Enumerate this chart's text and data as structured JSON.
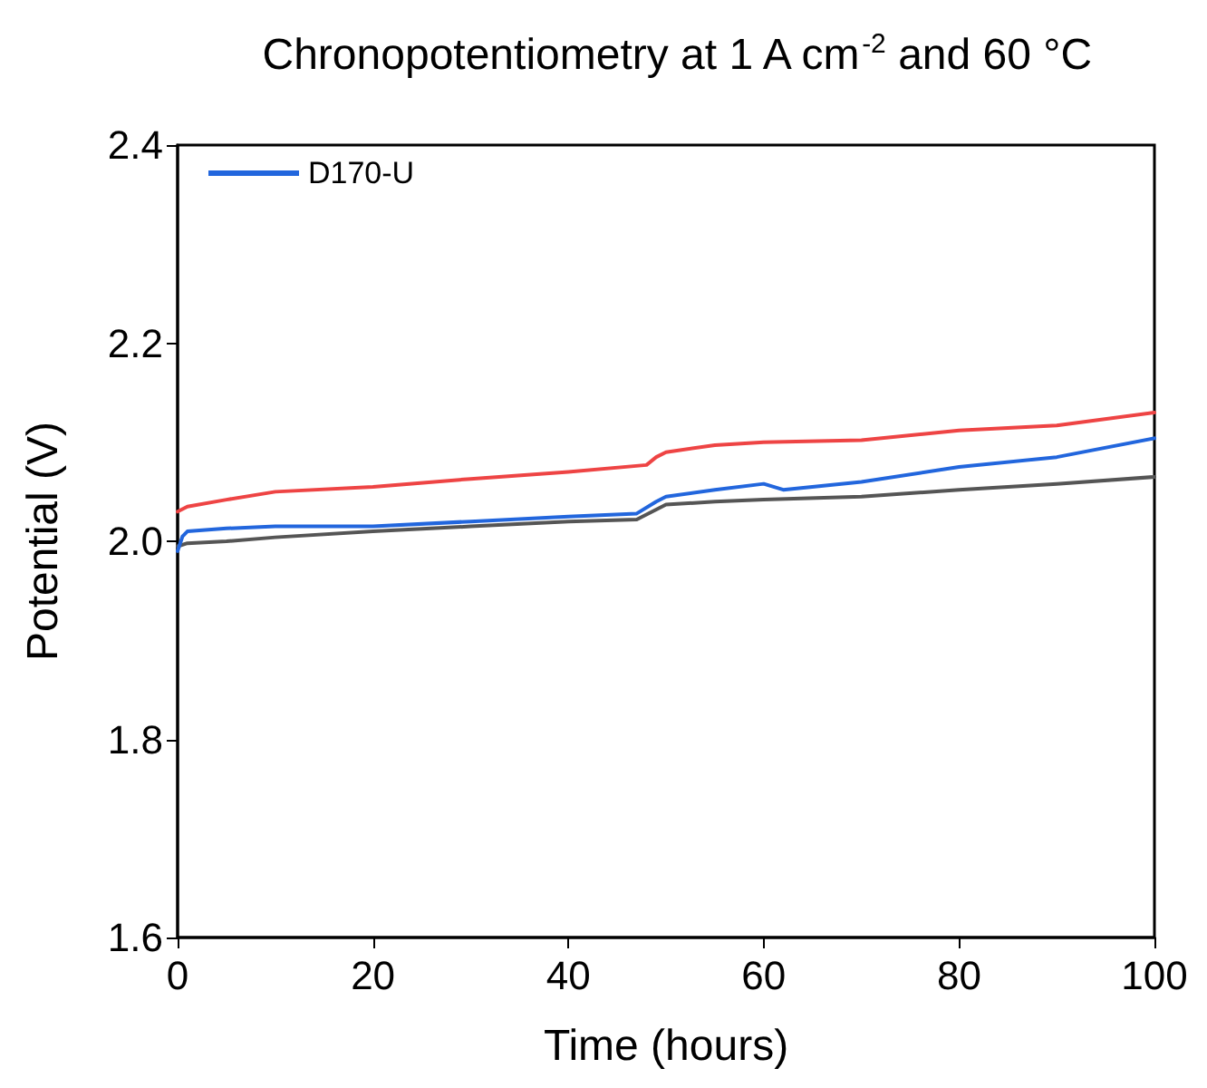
{
  "chart_data": {
    "type": "line",
    "title": "Chronopotentiometry at 1 A cm$^{-2}$ and 60 °C",
    "xlabel": "Time (hours)",
    "ylabel": "Potential (V)",
    "xlim": [
      0,
      100
    ],
    "xticks": [
      0,
      20,
      40,
      60,
      80,
      100
    ],
    "ylim": [
      1.6,
      2.4
    ],
    "yticks": [
      {
        "value": 1.6,
        "label": "1.6"
      },
      {
        "value": 1.8,
        "label": "1.8"
      },
      {
        "value": 2.0,
        "label": "2.0"
      },
      {
        "value": 2.2,
        "label": "2.2"
      },
      {
        "value": 2.4,
        "label": "2.4"
      }
    ],
    "grid": false,
    "legend": "top left",
    "marker": "none",
    "line_style": "solid",
    "series": [
      {
        "color": "#555555",
        "x": [
          0,
          1,
          5,
          10,
          20,
          30,
          40,
          47,
          49,
          50,
          55,
          60,
          70,
          80,
          90,
          100
        ],
        "values": [
          1.995,
          1.998,
          2.0,
          2.004,
          2.01,
          2.015,
          2.02,
          2.022,
          2.032,
          2.037,
          2.04,
          2.042,
          2.045,
          2.052,
          2.058,
          2.065
        ]
      },
      {
        "color": "#ee4444",
        "x": [
          0,
          1,
          5,
          10,
          20,
          30,
          40,
          48,
          49,
          50,
          55,
          60,
          70,
          80,
          90,
          100
        ],
        "values": [
          2.03,
          2.035,
          2.042,
          2.05,
          2.055,
          2.063,
          2.07,
          2.077,
          2.085,
          2.09,
          2.097,
          2.1,
          2.102,
          2.112,
          2.117,
          2.13
        ]
      },
      {
        "name": "D170-U",
        "color": "#2266dd",
        "x": [
          0,
          0.5,
          1,
          5,
          10,
          20,
          30,
          40,
          47,
          49,
          50,
          55,
          60,
          62,
          70,
          80,
          90,
          100
        ],
        "values": [
          1.99,
          2.005,
          2.01,
          2.013,
          2.015,
          2.015,
          2.02,
          2.025,
          2.028,
          2.04,
          2.045,
          2.052,
          2.058,
          2.052,
          2.06,
          2.075,
          2.085,
          2.104
        ]
      }
    ]
  }
}
